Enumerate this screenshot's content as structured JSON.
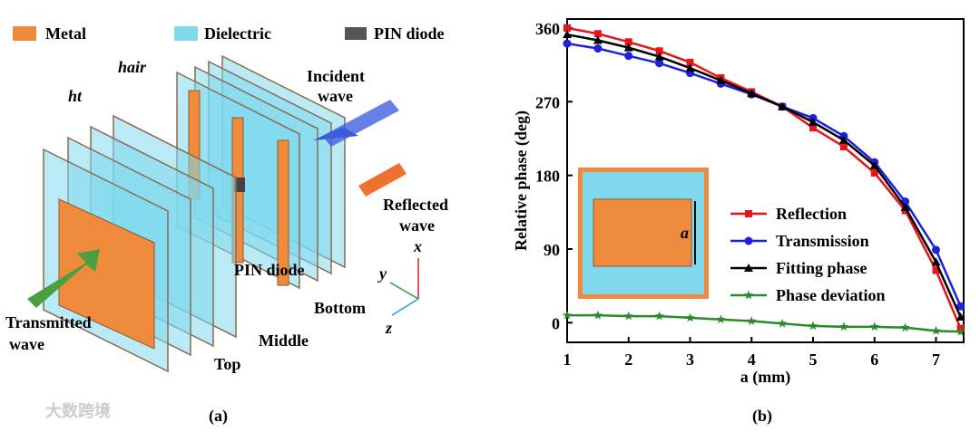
{
  "chart_data": {
    "type": "line",
    "title": "(b)",
    "x_label": "a (mm)",
    "y_label": "Relative phase (deg)",
    "x": [
      1,
      1.5,
      2,
      2.5,
      3,
      3.5,
      4,
      4.5,
      5,
      5.5,
      6,
      6.5,
      7,
      7.4
    ],
    "series": [
      {
        "name": "Reflection",
        "color": "#e8141c",
        "marker": "square",
        "values": [
          360,
          353,
          343,
          332,
          318,
          299,
          282,
          264,
          238,
          215,
          183,
          137,
          64,
          -7
        ]
      },
      {
        "name": "Transmission",
        "color": "#1f1fe0",
        "marker": "circle",
        "values": [
          341,
          335,
          326,
          317,
          305,
          292,
          279,
          264,
          250,
          228,
          196,
          148,
          89,
          20
        ]
      },
      {
        "name": "Fitting phase",
        "color": "#000000",
        "marker": "triangle",
        "values": [
          352,
          345,
          336,
          325,
          311,
          296,
          280,
          264,
          245,
          223,
          192,
          141,
          74,
          7
        ]
      },
      {
        "name": "Phase deviation",
        "color": "#2a8a2a",
        "marker": "star",
        "values": [
          9,
          9,
          8,
          8,
          6,
          4,
          2,
          -1,
          -4,
          -5,
          -5,
          -6,
          -10,
          -11
        ]
      }
    ],
    "xlim": [
      1,
      7.45
    ],
    "xticks": [
      1,
      2,
      3,
      4,
      5,
      6,
      7
    ],
    "ylim": [
      -24,
      371
    ],
    "yticks": [
      0,
      90,
      180,
      270,
      360
    ],
    "inset_label": "a"
  },
  "diagram": {
    "title": "(a)",
    "legend": [
      "Metal",
      "Dielectric",
      "PIN diode"
    ],
    "h_air": "hair",
    "h_t": "ht",
    "incident": [
      "Incident",
      "wave"
    ],
    "reflected": [
      "Reflected",
      "wave"
    ],
    "transmitted": [
      "Transmitted",
      "wave"
    ],
    "pin": "PIN diode",
    "groups": [
      "Top",
      "Middle",
      "Bottom"
    ],
    "axes": [
      "x",
      "y",
      "z"
    ],
    "watermark": "大数跨境"
  }
}
